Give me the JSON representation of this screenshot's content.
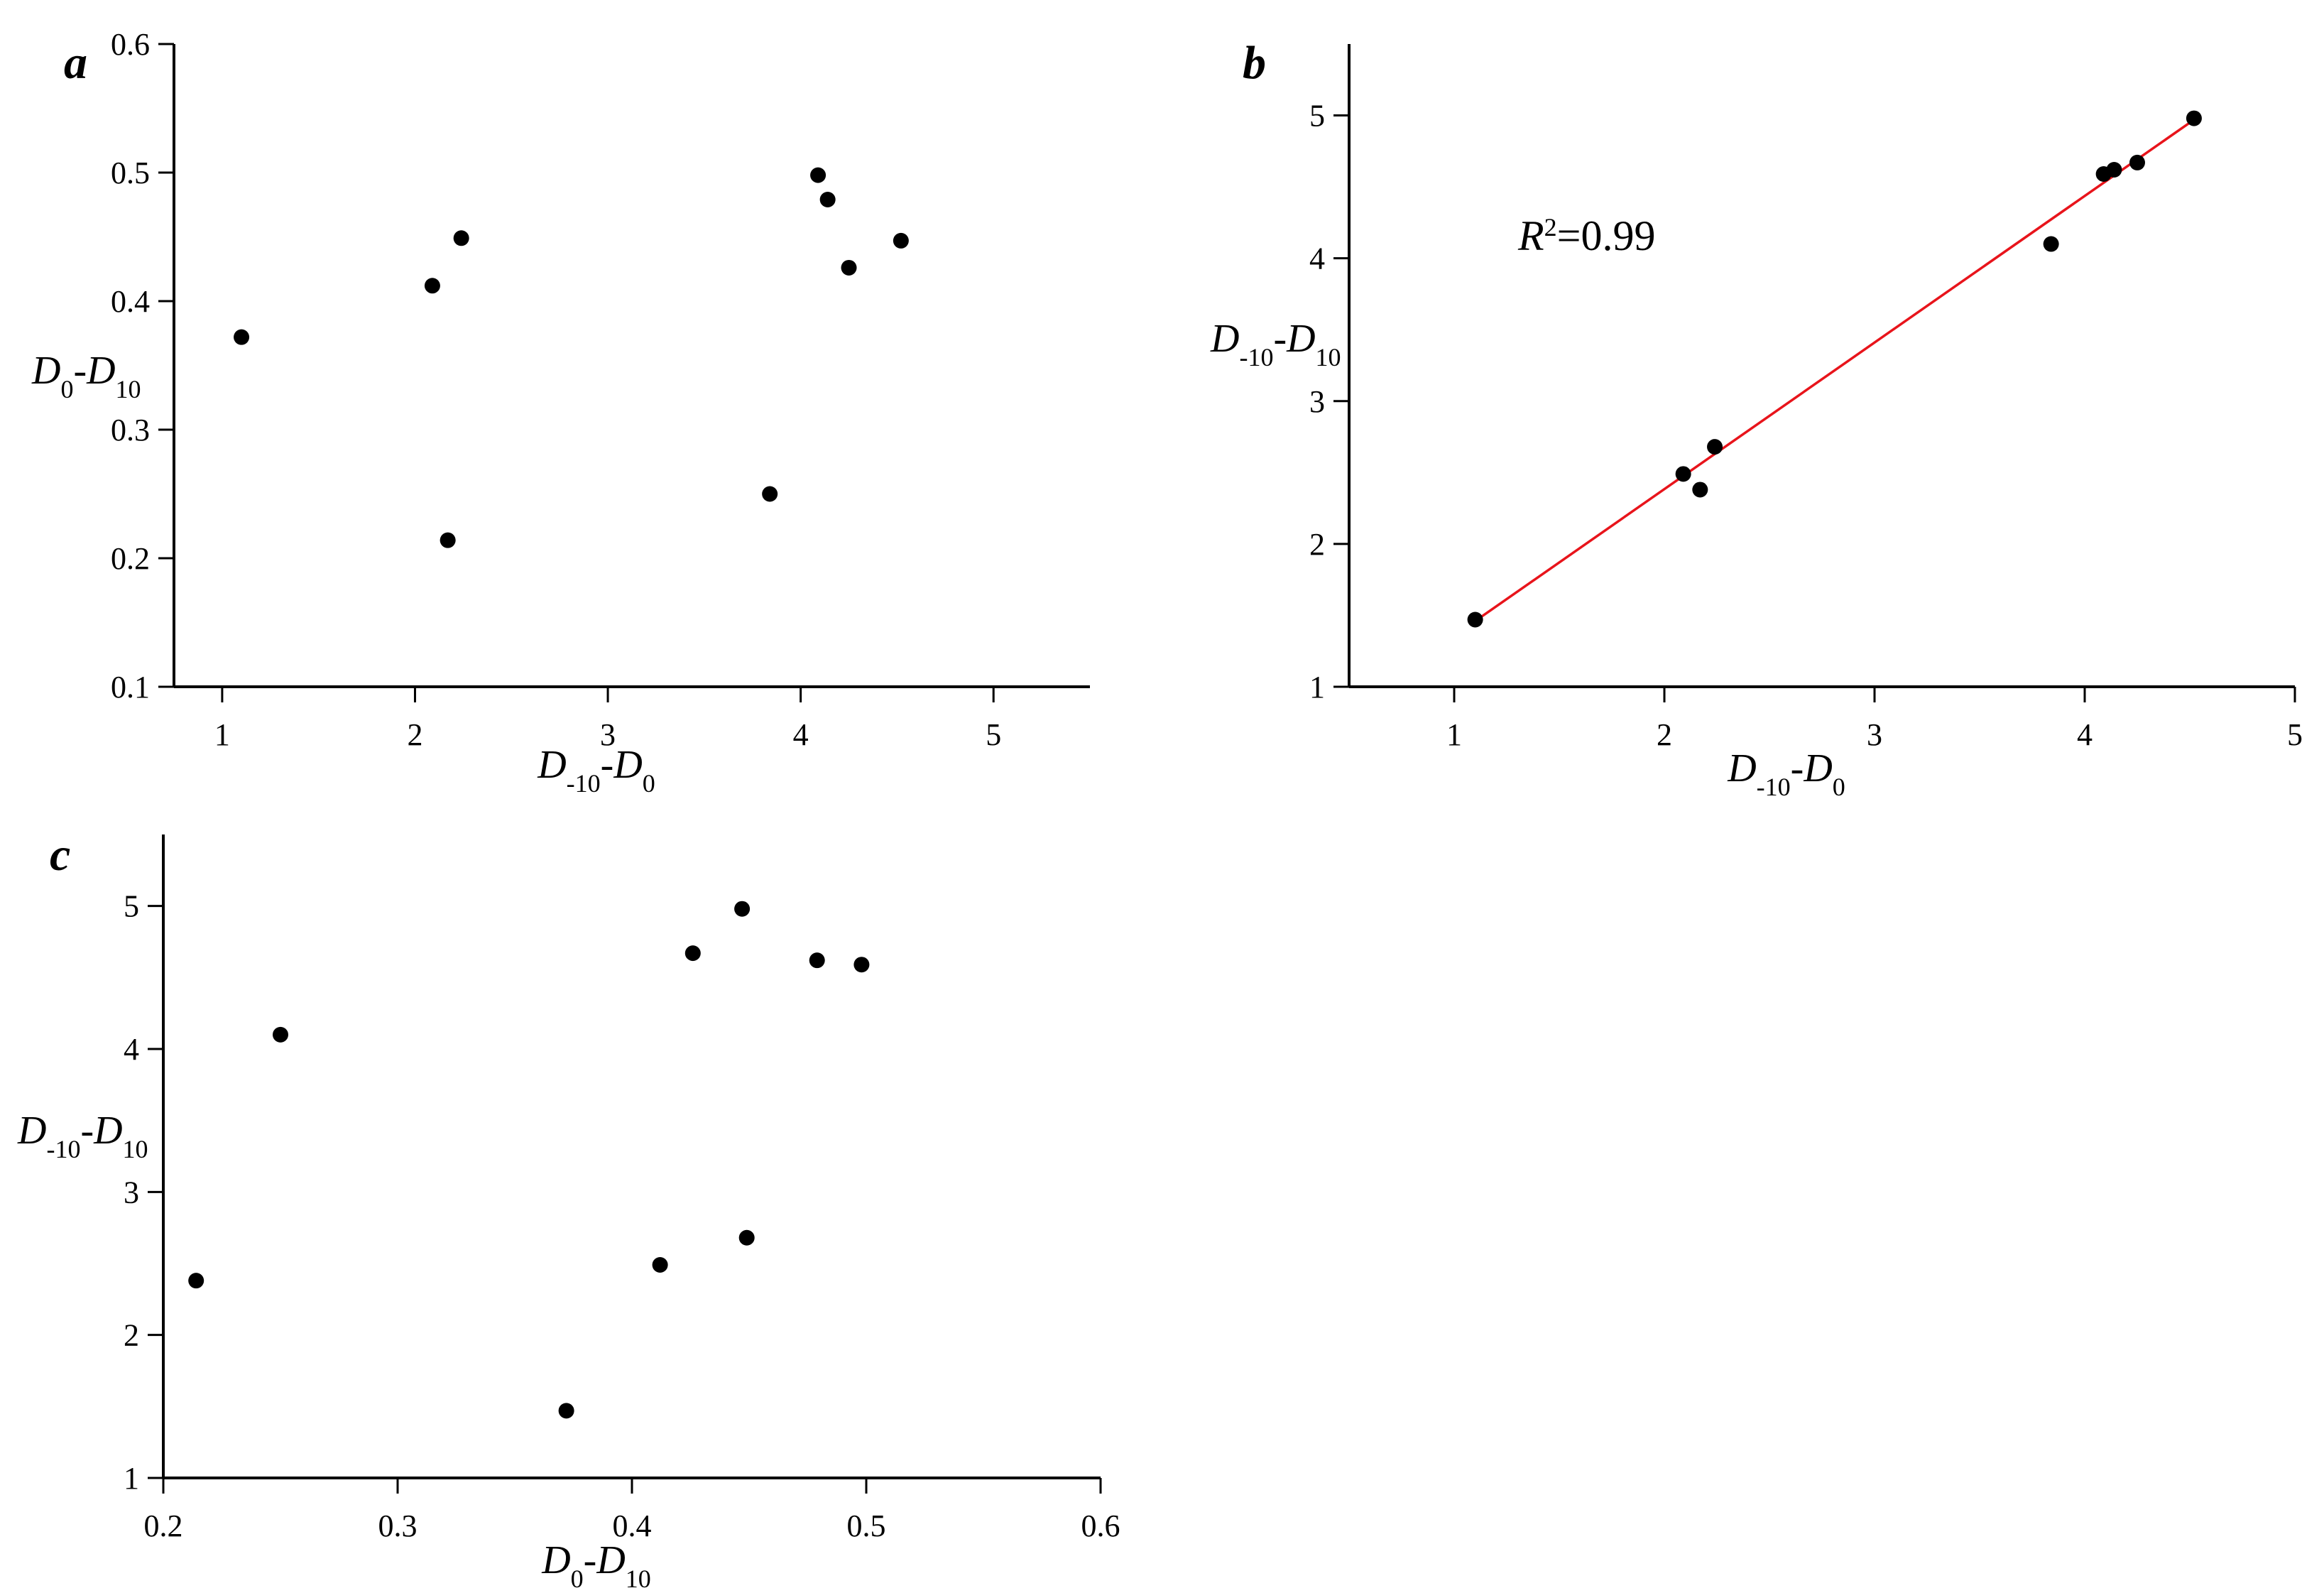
{
  "chart_data": [
    {
      "type": "scatter",
      "panel_label": "a",
      "xlabel": {
        "main": "D",
        "sub": "-10",
        "mid": "-D",
        "sub2": "0"
      },
      "ylabel": {
        "main": "D",
        "sub": "0",
        "mid": "-D",
        "sub2": "10"
      },
      "xlim": [
        0.75,
        5.5
      ],
      "ylim": [
        0.1,
        0.6
      ],
      "xticks": [
        1,
        2,
        3,
        4,
        5
      ],
      "yticks": [
        0.1,
        0.2,
        0.3,
        0.4,
        0.5,
        0.6
      ],
      "x": [
        1.1,
        2.09,
        2.24,
        2.17,
        3.84,
        4.09,
        4.14,
        4.25,
        4.52
      ],
      "y": [
        0.372,
        0.412,
        0.449,
        0.214,
        0.25,
        0.498,
        0.479,
        0.426,
        0.447
      ],
      "point_color": "#000000"
    },
    {
      "type": "scatter",
      "panel_label": "b",
      "xlabel": {
        "main": "D",
        "sub": "-10",
        "mid": "-D",
        "sub2": "0"
      },
      "ylabel": {
        "main": "D",
        "sub": "-10",
        "mid": "-D",
        "sub2": "10"
      },
      "xlim": [
        0.5,
        5
      ],
      "ylim": [
        1,
        5.5
      ],
      "xticks": [
        1,
        2,
        3,
        4,
        5
      ],
      "yticks": [
        1,
        2,
        3,
        4,
        5
      ],
      "x": [
        1.1,
        2.09,
        2.24,
        2.17,
        3.84,
        4.09,
        4.14,
        4.25,
        4.52
      ],
      "y": [
        1.47,
        2.49,
        2.68,
        2.38,
        4.1,
        4.59,
        4.62,
        4.67,
        4.98
      ],
      "point_color": "#000000",
      "fit_line": {
        "x": [
          1.1,
          4.52
        ],
        "y": [
          1.46,
          4.97
        ],
        "color": "#e8141b"
      },
      "annotation": {
        "symbol": "R",
        "sup": "2",
        "text": "=0.99"
      }
    },
    {
      "type": "scatter",
      "panel_label": "c",
      "xlabel": {
        "main": "D",
        "sub": "0",
        "mid": "-D",
        "sub2": "10"
      },
      "ylabel": {
        "main": "D",
        "sub": "-10",
        "mid": "-D",
        "sub2": "10"
      },
      "xlim": [
        0.2,
        0.6
      ],
      "ylim": [
        1,
        5.5
      ],
      "xticks": [
        0.2,
        0.3,
        0.4,
        0.5,
        0.6
      ],
      "yticks": [
        1,
        2,
        3,
        4,
        5
      ],
      "x": [
        0.372,
        0.412,
        0.449,
        0.214,
        0.25,
        0.498,
        0.479,
        0.426,
        0.447
      ],
      "y": [
        1.47,
        2.49,
        2.68,
        2.38,
        4.1,
        4.59,
        4.62,
        4.67,
        4.98
      ],
      "point_color": "#000000"
    }
  ]
}
